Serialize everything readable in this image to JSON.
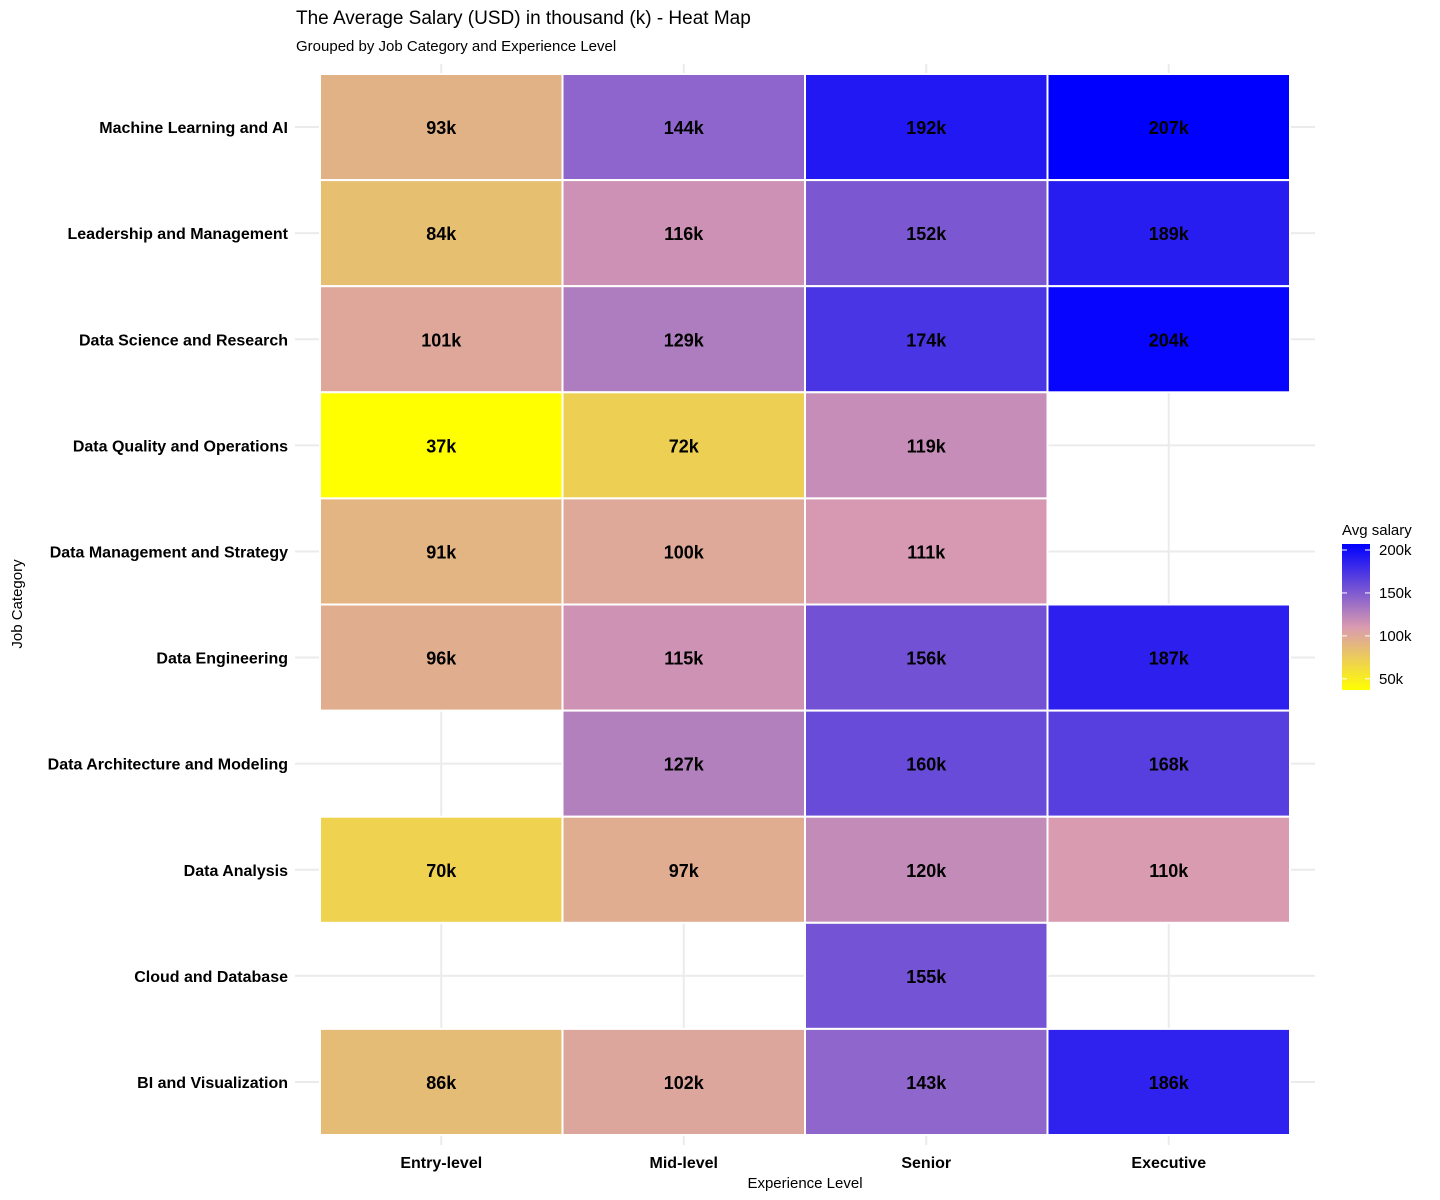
{
  "chart_data": {
    "type": "heatmap",
    "title": "The Average Salary (USD) in thousand (k) - Heat Map",
    "subtitle": "Grouped by Job Category and Experience Level",
    "xlabel": "Experience Level",
    "ylabel": "Job Category",
    "x_categories": [
      "Entry-level",
      "Mid-level",
      "Senior",
      "Executive"
    ],
    "y_categories": [
      "Machine Learning and AI",
      "Leadership and Management",
      "Data Science and Research",
      "Data Quality and Operations",
      "Data Management and Strategy",
      "Data Engineering",
      "Data Architecture and Modeling",
      "Data Analysis",
      "Cloud and Database",
      "BI and Visualization"
    ],
    "values": [
      [
        93,
        144,
        192,
        207
      ],
      [
        84,
        116,
        152,
        189
      ],
      [
        101,
        129,
        174,
        204
      ],
      [
        37,
        72,
        119,
        null
      ],
      [
        91,
        100,
        111,
        null
      ],
      [
        96,
        115,
        156,
        187
      ],
      [
        null,
        127,
        160,
        168
      ],
      [
        70,
        97,
        120,
        110
      ],
      [
        null,
        null,
        155,
        null
      ],
      [
        86,
        102,
        143,
        186
      ]
    ],
    "value_suffix": "k",
    "color_scale": {
      "min": 37,
      "max": 207,
      "stops": [
        {
          "color": "#ffff00",
          "value": 37
        },
        {
          "color": "#d99bb0",
          "value": 110
        },
        {
          "color": "#0000ff",
          "value": 207
        }
      ]
    },
    "legend": {
      "title": "Avg salary",
      "ticks": [
        {
          "value": 200,
          "label": "200k"
        },
        {
          "value": 150,
          "label": "150k"
        },
        {
          "value": 100,
          "label": "100k"
        },
        {
          "value": 50,
          "label": "50k"
        }
      ],
      "placement": "right"
    },
    "grid": true
  }
}
